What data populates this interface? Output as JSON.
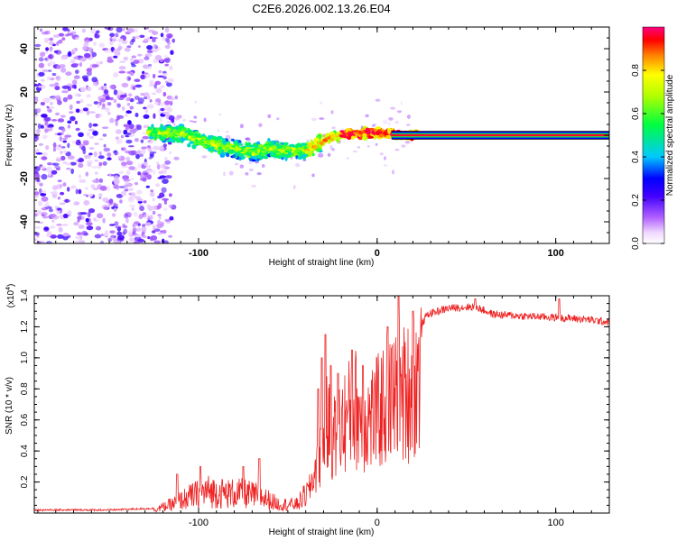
{
  "title": "C2E6.2026.002.13.26.E04",
  "colors": {
    "snr_line": "#ee2222",
    "axis": "#000000",
    "background": "#ffffff"
  },
  "chart_data": [
    {
      "type": "heatmap",
      "xlabel": "Height of straight line (km)",
      "ylabel": "Frequency (Hz)",
      "xlim": [
        -192,
        130
      ],
      "ylim": [
        -50,
        50
      ],
      "x_ticks": [
        -100,
        0,
        100
      ],
      "y_ticks": [
        -40,
        -20,
        0,
        20,
        40
      ],
      "colorbar": {
        "label": "Normalized spectral amplitude",
        "range": [
          0,
          1
        ],
        "ticks": [
          "0.0",
          "0.2",
          "0.4",
          "0.6",
          "0.8"
        ],
        "tick_values": [
          0.0,
          0.2,
          0.4,
          0.6,
          0.8
        ]
      },
      "ridge": {
        "description": "frequency ridge vs height",
        "points": [
          [
            -125,
            1
          ],
          [
            -110,
            1
          ],
          [
            -100,
            -2
          ],
          [
            -90,
            -5
          ],
          [
            -80,
            -6
          ],
          [
            -70,
            -8
          ],
          [
            -60,
            -6
          ],
          [
            -50,
            -7
          ],
          [
            -40,
            -7
          ],
          [
            -30,
            -2
          ],
          [
            -20,
            0
          ],
          [
            -10,
            1
          ],
          [
            0,
            1
          ],
          [
            10,
            0.5
          ],
          [
            20,
            0
          ],
          [
            130,
            0
          ]
        ],
        "flat_band_start": 8,
        "flat_band_value": 0,
        "noise_region_end": -120
      }
    },
    {
      "type": "line",
      "xlabel": "Height of straight line (km)",
      "ylabel": "SNR (10 * v/v)",
      "y_multiplier": "(x10^4)",
      "xlim": [
        -192,
        130
      ],
      "ylim": [
        0,
        1.4
      ],
      "x_ticks": [
        -100,
        0,
        100
      ],
      "y_ticks": [
        "0.2",
        "0.4",
        "0.6",
        "0.8",
        "1.0",
        "1.2",
        "1.4"
      ],
      "y_tick_values": [
        0.2,
        0.4,
        0.6,
        0.8,
        1.0,
        1.2,
        1.4
      ],
      "series": [
        {
          "name": "SNR",
          "envelope": [
            [
              -192,
              0.02
            ],
            [
              -150,
              0.02
            ],
            [
              -125,
              0.03
            ],
            [
              -115,
              0.08
            ],
            [
              -105,
              0.15
            ],
            [
              -95,
              0.2
            ],
            [
              -85,
              0.18
            ],
            [
              -75,
              0.18
            ],
            [
              -65,
              0.15
            ],
            [
              -55,
              0.08
            ],
            [
              -45,
              0.08
            ],
            [
              -38,
              0.2
            ],
            [
              -32,
              0.5
            ],
            [
              -28,
              0.75
            ],
            [
              -24,
              0.65
            ],
            [
              -18,
              0.8
            ],
            [
              -12,
              0.9
            ],
            [
              -6,
              0.8
            ],
            [
              0,
              0.85
            ],
            [
              5,
              0.95
            ],
            [
              12,
              1.0
            ],
            [
              18,
              1.05
            ],
            [
              22,
              1.15
            ],
            [
              28,
              1.28
            ],
            [
              40,
              1.32
            ],
            [
              55,
              1.33
            ],
            [
              65,
              1.28
            ],
            [
              80,
              1.27
            ],
            [
              100,
              1.26
            ],
            [
              115,
              1.25
            ],
            [
              130,
              1.23
            ]
          ],
          "peaks": [
            [
              -112,
              0.25
            ],
            [
              -99,
              0.3
            ],
            [
              -75,
              0.3
            ],
            [
              -66,
              0.35
            ],
            [
              -33,
              0.8
            ],
            [
              -31,
              1.0
            ],
            [
              -29,
              1.15
            ],
            [
              -26,
              0.95
            ],
            [
              -22,
              0.9
            ],
            [
              -14,
              1.05
            ],
            [
              -8,
              0.95
            ],
            [
              6,
              1.2
            ],
            [
              12,
              1.4
            ],
            [
              20,
              1.3
            ],
            [
              55,
              1.38
            ],
            [
              102,
              1.38
            ]
          ]
        }
      ]
    }
  ]
}
